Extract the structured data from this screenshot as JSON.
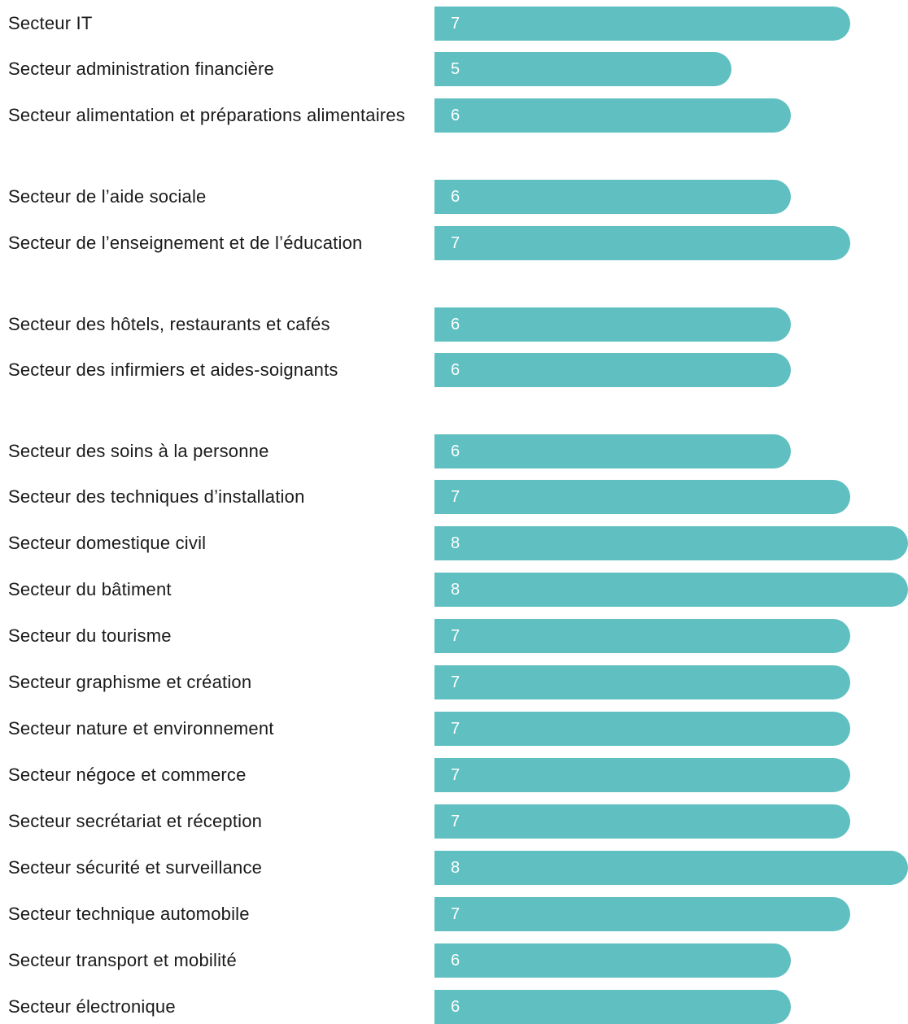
{
  "chart_data": {
    "type": "bar",
    "orientation": "horizontal",
    "bar_color": "#5fbfc1",
    "label_color": "#1a1a1a",
    "value_color": "#ffffff",
    "xlim": [
      0,
      8
    ],
    "categories": [
      "Secteur IT",
      "Secteur administration financière",
      "Secteur alimentation et préparations alimentaires",
      "Secteur de l’aide sociale",
      "Secteur de l’enseignement et de l’éducation",
      "Secteur des hôtels, restaurants et cafés",
      "Secteur des infirmiers et aides-soignants",
      "Secteur des soins à la personne",
      "Secteur des techniques d’installation",
      "Secteur domestique civil",
      "Secteur du bâtiment",
      "Secteur du tourisme",
      "Secteur graphisme et création",
      "Secteur nature et environnement",
      "Secteur négoce et commerce",
      "Secteur secrétariat et réception",
      "Secteur sécurité et surveillance",
      "Secteur technique automobile",
      "Secteur transport et mobilité",
      "Secteur électronique"
    ],
    "values": [
      7,
      5,
      6,
      6,
      7,
      6,
      6,
      6,
      7,
      8,
      8,
      7,
      7,
      7,
      7,
      7,
      8,
      7,
      6,
      6
    ]
  }
}
